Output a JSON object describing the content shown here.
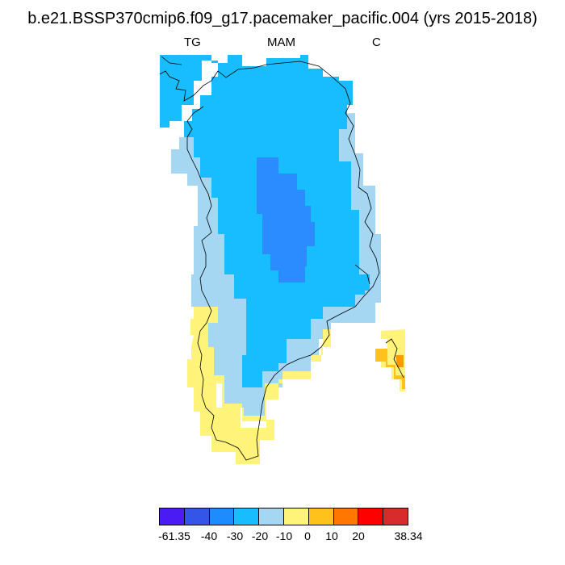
{
  "header": {
    "title": "b.e21.BSSP370cmip6.f09_g17.pacemaker_pacific.004 (yrs 2015-2018)",
    "left_label": "TG",
    "center_label": "MAM",
    "right_label": "C"
  },
  "colorbar": {
    "colors": [
      "#4a1bf2",
      "#3355e8",
      "#1e8cff",
      "#18bdff",
      "#a5d6f2",
      "#fff37a",
      "#ffc21a",
      "#ff7700",
      "#ff0000",
      "#d62c2c"
    ],
    "labels": [
      "-61.35",
      "-40",
      "-30",
      "-20",
      "-10",
      "0",
      "10",
      "20",
      "38.34"
    ]
  },
  "map": {
    "region": "Greenland",
    "field_colors": {
      "dark_blue": "#2a8cff",
      "blue": "#18bdff",
      "light_blue": "#a5d6f2",
      "yellow": "#fff37a",
      "gold": "#ffc21a",
      "orange": "#ff9900"
    }
  }
}
